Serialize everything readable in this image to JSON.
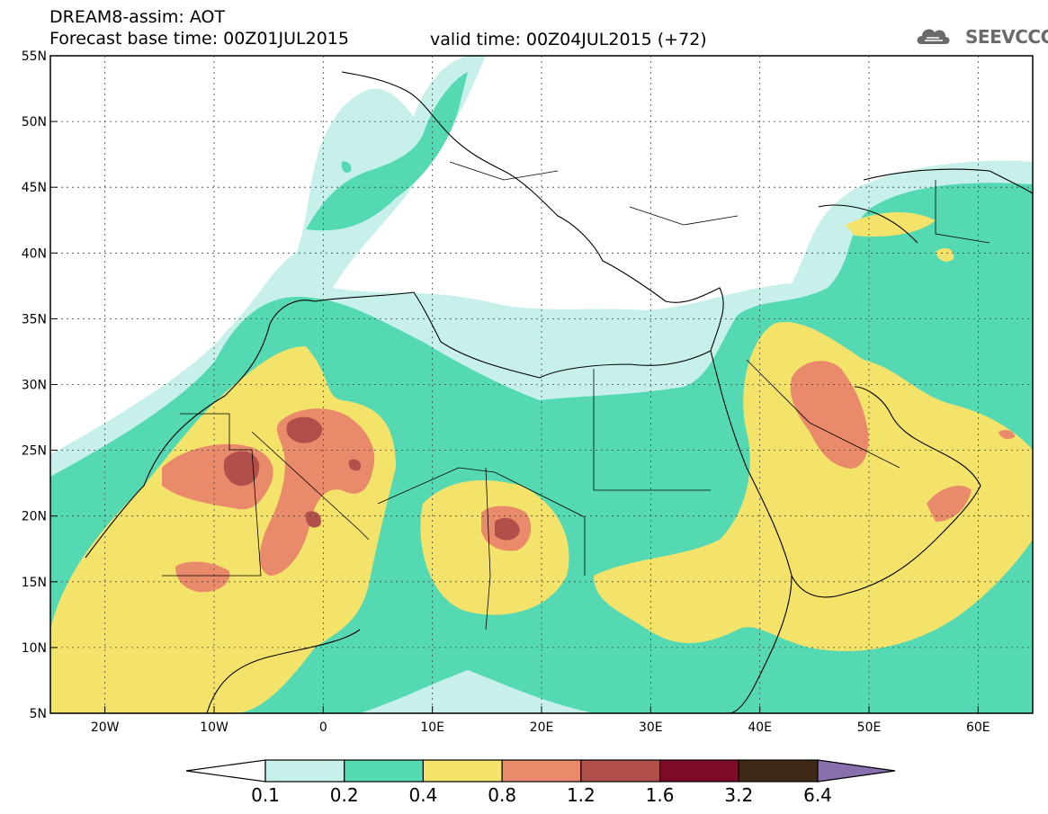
{
  "header": {
    "title": "DREAM8-assim: AOT",
    "base_time": "Forecast base time: 00Z01JUL2015",
    "valid_time": "valid time: 00Z04JUL2015 (+72)"
  },
  "logo": {
    "text": "SEEVCCC",
    "icon": "cloud-icon"
  },
  "axes": {
    "lat_labels": [
      "55N",
      "50N",
      "45N",
      "40N",
      "35N",
      "30N",
      "25N",
      "20N",
      "15N",
      "10N",
      "5N"
    ],
    "lon_labels": [
      "20W",
      "10W",
      "0",
      "10E",
      "20E",
      "30E",
      "40E",
      "50E",
      "60E"
    ],
    "lon_range": [
      -25,
      65
    ],
    "lat_range": [
      5,
      55
    ]
  },
  "colorbar": {
    "labels": [
      "0.1",
      "0.2",
      "0.4",
      "0.8",
      "1.2",
      "1.6",
      "3.2",
      "6.4"
    ],
    "colors": [
      "#c8f0eb",
      "#55d9b3",
      "#f4e36a",
      "#e98a6a",
      "#b1504a",
      "#7d0c2a",
      "#3f2a17"
    ],
    "under_color": "#ffffff",
    "over_color": "#8a6fae"
  },
  "palette": {
    "lt": "#c8f0eb",
    "gr": "#55d9b3",
    "ye": "#f4e36a",
    "or": "#e98a6a",
    "rd": "#b1504a"
  }
}
